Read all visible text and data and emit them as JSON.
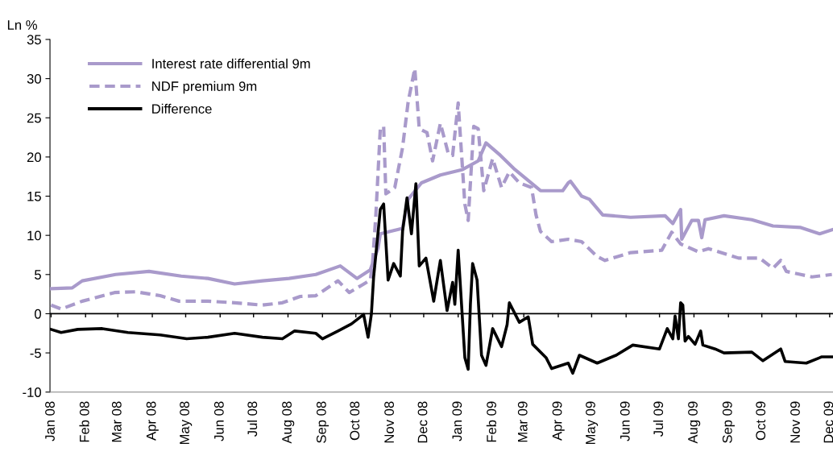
{
  "chart_data": {
    "type": "line",
    "ylabel": "Ln %",
    "xlim": [
      "2007-12-31",
      "2009-12-04"
    ],
    "ylim": [
      -10,
      35
    ],
    "yticks": [
      -10,
      -5,
      0,
      5,
      10,
      15,
      20,
      25,
      30,
      35
    ],
    "xticks": [
      {
        "value": "2008-01-01",
        "label": "Jan 08"
      },
      {
        "value": "2008-02-01",
        "label": "Feb 08"
      },
      {
        "value": "2008-03-01",
        "label": "Mar 08"
      },
      {
        "value": "2008-04-01",
        "label": "Apr 08"
      },
      {
        "value": "2008-05-01",
        "label": "May 08"
      },
      {
        "value": "2008-06-01",
        "label": "Jun 08"
      },
      {
        "value": "2008-07-01",
        "label": "Jul 08"
      },
      {
        "value": "2008-08-01",
        "label": "Aug 08"
      },
      {
        "value": "2008-09-01",
        "label": "Sep 08"
      },
      {
        "value": "2008-10-01",
        "label": "Oct 08"
      },
      {
        "value": "2008-11-01",
        "label": "Nov 08"
      },
      {
        "value": "2008-12-01",
        "label": "Dec 08"
      },
      {
        "value": "2009-01-01",
        "label": "Jan 09"
      },
      {
        "value": "2009-02-01",
        "label": "Feb 09"
      },
      {
        "value": "2009-03-01",
        "label": "Mar 09"
      },
      {
        "value": "2009-04-01",
        "label": "Apr 09"
      },
      {
        "value": "2009-05-01",
        "label": "May 09"
      },
      {
        "value": "2009-06-01",
        "label": "Jun 09"
      },
      {
        "value": "2009-07-01",
        "label": "Jul 09"
      },
      {
        "value": "2009-08-01",
        "label": "Aug 09"
      },
      {
        "value": "2009-09-01",
        "label": "Sep 09"
      },
      {
        "value": "2009-10-01",
        "label": "Oct 09"
      },
      {
        "value": "2009-11-01",
        "label": "Nov 09"
      },
      {
        "value": "2009-12-01",
        "label": "Dec 09"
      }
    ],
    "ref_lines": [
      {
        "axis": "y",
        "value": 0,
        "color": "#000000",
        "line_style": "solid"
      }
    ],
    "grid": false,
    "legend": "top left",
    "marker": "none",
    "series": [
      {
        "name": "Interest rate differential 9m",
        "color": "#a99acb",
        "line_style": "solid",
        "x": [
          "2008-01-01",
          "2008-01-20",
          "2008-01-29",
          "2008-02-28",
          "2008-03-29",
          "2008-04-27",
          "2008-05-21",
          "2008-06-14",
          "2008-07-09",
          "2008-08-02",
          "2008-08-26",
          "2008-09-17",
          "2008-10-02",
          "2008-10-14",
          "2008-10-21",
          "2008-10-23",
          "2008-11-12",
          "2008-11-17",
          "2008-11-29",
          "2008-12-16",
          "2009-01-05",
          "2009-01-19",
          "2009-01-26",
          "2009-02-08",
          "2009-02-21",
          "2009-03-16",
          "2009-04-05",
          "2009-04-10",
          "2009-04-12",
          "2009-04-22",
          "2009-04-29",
          "2009-05-11",
          "2009-06-05",
          "2009-07-06",
          "2009-07-13",
          "2009-07-20",
          "2009-07-21",
          "2009-07-30",
          "2009-08-05",
          "2009-08-08",
          "2009-08-11",
          "2009-08-28",
          "2009-09-22",
          "2009-10-11",
          "2009-11-05",
          "2009-11-22",
          "2009-12-03"
        ],
        "values": [
          3.2,
          3.3,
          4.2,
          5.0,
          5.4,
          4.8,
          4.5,
          3.8,
          4.2,
          4.5,
          5.0,
          6.1,
          4.5,
          5.6,
          8.4,
          10.2,
          10.9,
          14.6,
          16.7,
          17.7,
          18.4,
          19.5,
          21.8,
          20.2,
          18.4,
          15.7,
          15.7,
          16.7,
          16.9,
          15.0,
          14.6,
          12.6,
          12.3,
          12.5,
          11.5,
          13.3,
          9.5,
          11.9,
          11.9,
          9.7,
          12.0,
          12.5,
          12.0,
          11.2,
          11.0,
          10.2,
          10.7
        ]
      },
      {
        "name": "NDF premium 9m",
        "color": "#a99acb",
        "line_style": "dashed",
        "x": [
          "2008-01-01",
          "2008-01-10",
          "2008-01-29",
          "2008-02-27",
          "2008-03-17",
          "2008-04-08",
          "2008-04-25",
          "2008-05-21",
          "2008-06-14",
          "2008-07-09",
          "2008-07-27",
          "2008-08-12",
          "2008-08-26",
          "2008-09-15",
          "2008-09-25",
          "2008-10-07",
          "2008-10-14",
          "2008-10-16",
          "2008-10-19",
          "2008-10-23",
          "2008-10-26",
          "2008-10-28",
          "2008-11-05",
          "2008-11-12",
          "2008-11-17",
          "2008-11-23",
          "2008-11-27",
          "2008-12-04",
          "2008-12-09",
          "2008-12-16",
          "2008-12-23",
          "2008-12-27",
          "2009-01-01",
          "2009-01-07",
          "2009-01-10",
          "2009-01-15",
          "2009-01-19",
          "2009-01-24",
          "2009-02-01",
          "2009-02-09",
          "2009-02-16",
          "2009-02-25",
          "2009-03-08",
          "2009-03-12",
          "2009-03-16",
          "2009-03-26",
          "2009-04-10",
          "2009-04-22",
          "2009-05-06",
          "2009-05-13",
          "2009-06-05",
          "2009-07-03",
          "2009-07-12",
          "2009-07-20",
          "2009-08-05",
          "2009-08-14",
          "2009-09-10",
          "2009-09-29",
          "2009-10-11",
          "2009-10-18",
          "2009-10-23",
          "2009-11-05",
          "2009-11-15",
          "2009-12-03"
        ],
        "values": [
          1.1,
          0.6,
          1.6,
          2.7,
          2.8,
          2.3,
          1.6,
          1.6,
          1.4,
          1.1,
          1.4,
          2.2,
          2.3,
          4.2,
          2.7,
          3.7,
          4.3,
          6.4,
          12.6,
          23.6,
          23.9,
          15.3,
          16.1,
          21.2,
          27.0,
          31.3,
          23.6,
          23.1,
          19.5,
          24.3,
          20.5,
          20.2,
          26.9,
          14.0,
          11.9,
          23.9,
          23.6,
          15.7,
          19.8,
          16.1,
          18.1,
          16.7,
          16.1,
          12.6,
          10.5,
          9.2,
          9.5,
          9.2,
          7.3,
          6.8,
          7.8,
          8.1,
          10.4,
          8.9,
          7.9,
          8.3,
          7.1,
          7.1,
          5.8,
          6.8,
          5.4,
          5.0,
          4.7,
          5.0
        ]
      },
      {
        "name": "Difference",
        "color": "#000000",
        "line_style": "solid",
        "x": [
          "2008-01-01",
          "2008-01-10",
          "2008-01-25",
          "2008-02-16",
          "2008-03-10",
          "2008-04-08",
          "2008-05-02",
          "2008-05-21",
          "2008-06-14",
          "2008-07-09",
          "2008-07-27",
          "2008-08-07",
          "2008-08-26",
          "2008-09-01",
          "2008-09-15",
          "2008-09-27",
          "2008-10-08",
          "2008-10-12",
          "2008-10-15",
          "2008-10-17",
          "2008-10-23",
          "2008-10-26",
          "2008-10-30",
          "2008-11-04",
          "2008-11-10",
          "2008-11-12",
          "2008-11-16",
          "2008-11-20",
          "2008-11-24",
          "2008-11-27",
          "2008-12-03",
          "2008-12-10",
          "2008-12-16",
          "2008-12-22",
          "2008-12-27",
          "2008-12-29",
          "2009-01-01",
          "2009-01-07",
          "2009-01-10",
          "2009-01-12",
          "2009-01-14",
          "2009-01-18",
          "2009-01-22",
          "2009-01-26",
          "2009-02-01",
          "2009-02-09",
          "2009-02-14",
          "2009-02-16",
          "2009-02-25",
          "2009-03-05",
          "2009-03-09",
          "2009-03-21",
          "2009-03-26",
          "2009-04-10",
          "2009-04-14",
          "2009-04-20",
          "2009-05-06",
          "2009-05-23",
          "2009-06-07",
          "2009-07-01",
          "2009-07-08",
          "2009-07-13",
          "2009-07-15",
          "2009-07-18",
          "2009-07-20",
          "2009-07-22",
          "2009-07-24",
          "2009-07-27",
          "2009-08-02",
          "2009-08-07",
          "2009-08-09",
          "2009-08-20",
          "2009-08-28",
          "2009-09-22",
          "2009-10-02",
          "2009-10-18",
          "2009-10-22",
          "2009-11-10",
          "2009-11-24",
          "2009-12-03"
        ],
        "values": [
          -2.0,
          -2.4,
          -2.0,
          -1.9,
          -2.4,
          -2.7,
          -3.2,
          -3.0,
          -2.5,
          -3.0,
          -3.2,
          -2.2,
          -2.5,
          -3.2,
          -2.2,
          -1.3,
          -0.1,
          -3.0,
          0.0,
          4.7,
          13.3,
          14.0,
          4.3,
          6.4,
          4.8,
          10.5,
          14.8,
          10.2,
          16.6,
          6.1,
          7.1,
          1.6,
          6.8,
          0.4,
          4.0,
          1.2,
          8.1,
          -5.6,
          -7.1,
          1.2,
          6.4,
          4.3,
          -5.3,
          -6.6,
          -1.9,
          -4.2,
          -1.4,
          1.4,
          -1.1,
          -0.4,
          -3.9,
          -5.6,
          -7.0,
          -6.3,
          -7.6,
          -5.3,
          -6.3,
          -5.3,
          -4.0,
          -4.5,
          -1.9,
          -3.2,
          -0.3,
          -3.2,
          1.4,
          1.1,
          -3.5,
          -2.9,
          -3.9,
          -2.2,
          -4.0,
          -4.5,
          -5.0,
          -4.9,
          -6.0,
          -4.5,
          -6.1,
          -6.3,
          -5.5,
          -5.5
        ]
      }
    ]
  }
}
